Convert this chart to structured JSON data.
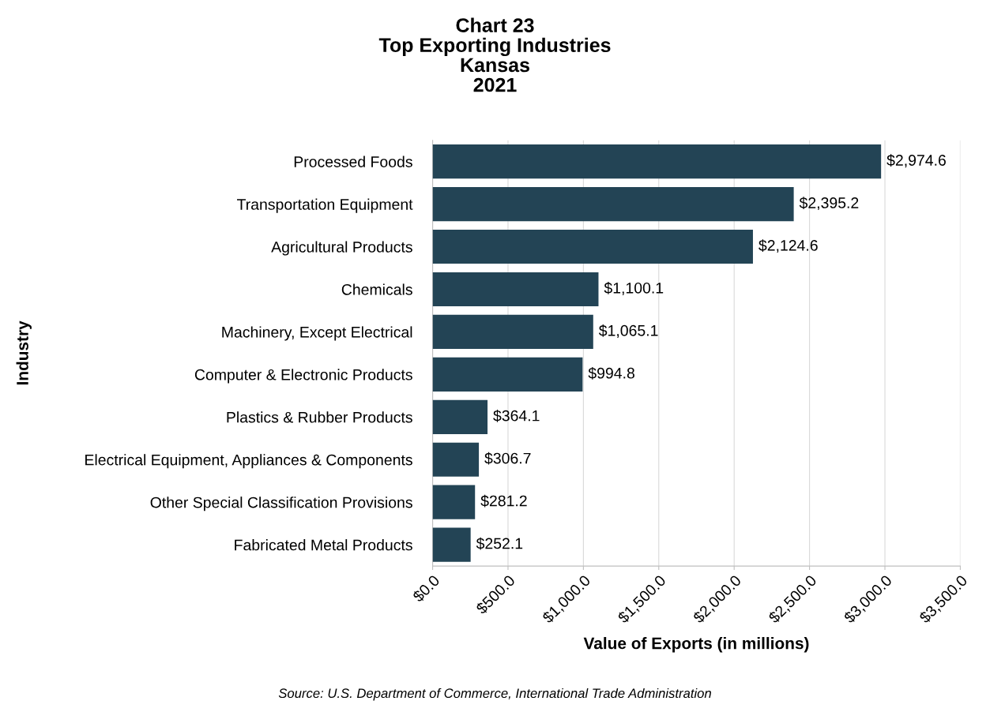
{
  "chart_data": {
    "type": "bar",
    "orientation": "horizontal",
    "title": "Chart 23\nTop Exporting Industries\nKansas\n2021",
    "xlabel": "Value of Exports (in millions)",
    "ylabel": "Industry",
    "categories": [
      "Processed Foods",
      "Transportation Equipment",
      "Agricultural Products",
      "Chemicals",
      "Machinery, Except Electrical",
      "Computer & Electronic Products",
      "Plastics & Rubber Products",
      "Electrical Equipment, Appliances & Components",
      "Other Special Classification Provisions",
      "Fabricated Metal Products"
    ],
    "values": [
      2974.6,
      2395.2,
      2124.6,
      1100.1,
      1065.1,
      994.8,
      364.1,
      306.7,
      281.2,
      252.1
    ],
    "value_labels": [
      "$2,974.6",
      "$2,395.2",
      "$2,124.6",
      "$1,100.1",
      "$1,065.1",
      "$994.8",
      "$364.1",
      "$306.7",
      "$281.2",
      "$252.1"
    ],
    "color": "#234455",
    "xlim": [
      0,
      3500
    ],
    "xticks": [
      {
        "value": 0,
        "label": "$0.0"
      },
      {
        "value": 500,
        "label": "$500.0"
      },
      {
        "value": 1000,
        "label": "$1,000.0"
      },
      {
        "value": 1500,
        "label": "$1,500.0"
      },
      {
        "value": 2000,
        "label": "$2,000.0"
      },
      {
        "value": 2500,
        "label": "$2,500.0"
      },
      {
        "value": 3000,
        "label": "$3,000.0"
      },
      {
        "value": 3500,
        "label": "$3,500.0"
      }
    ],
    "grid": "x",
    "annotations": [
      "Source: U.S. Department of Commerce, International Trade Administration"
    ]
  }
}
